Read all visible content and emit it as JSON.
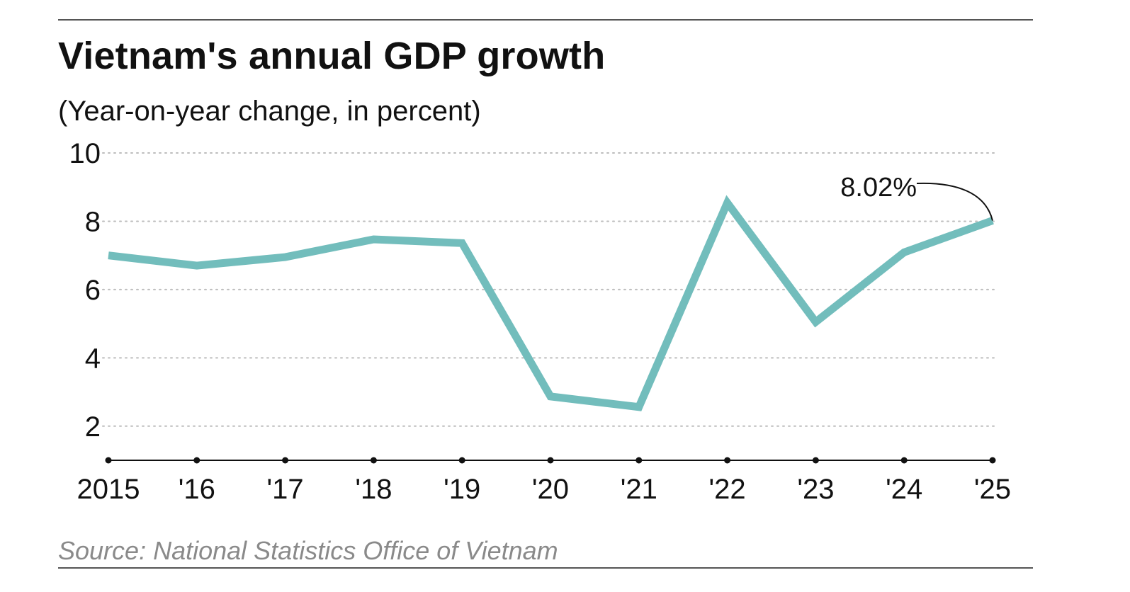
{
  "chart_data": {
    "type": "line",
    "title": "Vietnam's annual GDP growth",
    "subtitle": "(Year-on-year change, in percent)",
    "source": "Source: National Statistics Office of Vietnam",
    "xlabel": "",
    "ylabel": "",
    "categories": [
      "2015",
      "'16",
      "'17",
      "'18",
      "'19",
      "'20",
      "'21",
      "'22",
      "'23",
      "'24",
      "'25"
    ],
    "series": [
      {
        "name": "Annual GDP growth",
        "values": [
          7.0,
          6.7,
          6.95,
          7.47,
          7.36,
          2.87,
          2.56,
          8.54,
          5.05,
          7.09,
          8.02
        ],
        "color": "#72bdbc"
      }
    ],
    "ylim": [
      1,
      10
    ],
    "yticks": [
      2,
      4,
      6,
      8,
      10
    ],
    "ytick_labels": [
      "2",
      "4",
      "6",
      "8",
      "10"
    ],
    "grid": true,
    "annotation": {
      "label": "8.02%",
      "category": "'25",
      "value": 8.02
    },
    "colors": {
      "line": "#72bdbc",
      "grid": "#bdbdbd",
      "axis": "#111111",
      "text": "#111111",
      "source": "#8a8a8a"
    }
  }
}
